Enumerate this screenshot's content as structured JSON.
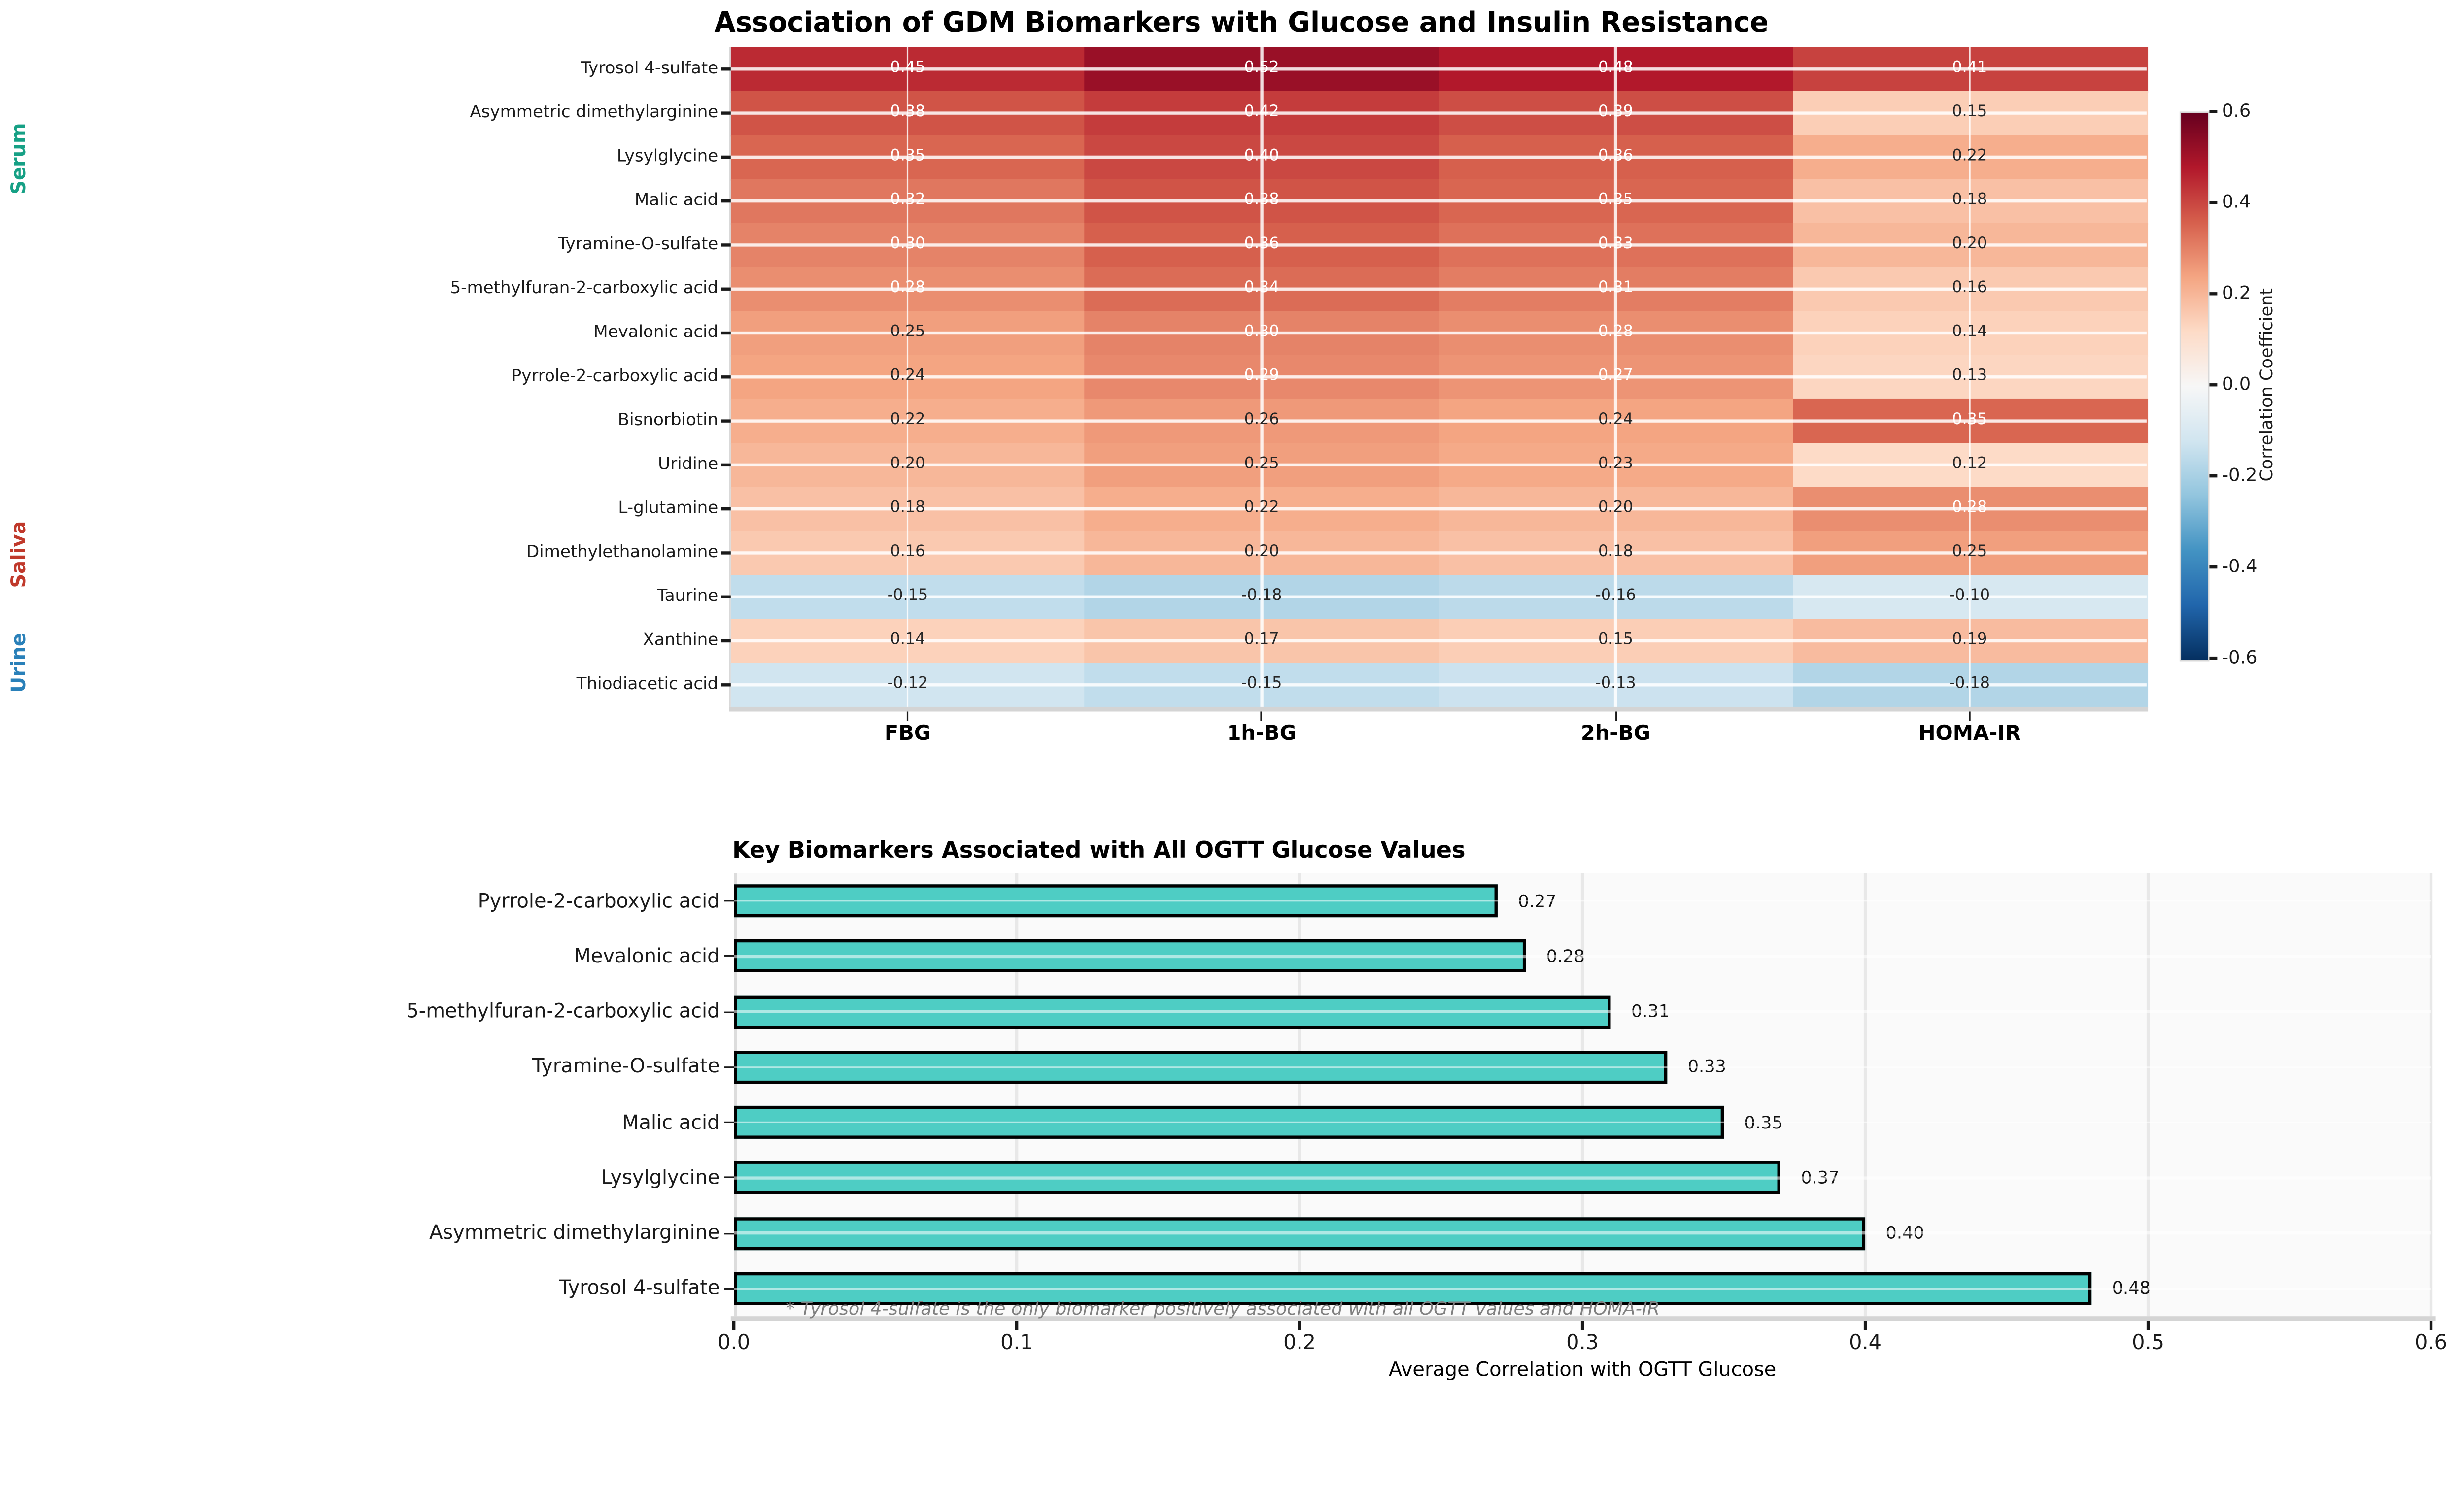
{
  "chart_data": [
    {
      "type": "heatmap",
      "title": "Association of GDM Biomarkers with Glucose and Insulin Resistance",
      "x_categories": [
        "FBG",
        "1h-BG",
        "2h-BG",
        "HOMA-IR"
      ],
      "y_categories": [
        "Tyrosol 4-sulfate",
        "Asymmetric dimethylarginine",
        "Lysylglycine",
        "Malic acid",
        "Tyramine-O-sulfate",
        "5-methylfuran-2-carboxylic acid",
        "Mevalonic acid",
        "Pyrrole-2-carboxylic acid",
        "Bisnorbiotin",
        "Uridine",
        "L-glutamine",
        "Dimethylethanolamine",
        "Taurine",
        "Xanthine",
        "Thiodiacetic acid"
      ],
      "values": [
        [
          0.45,
          0.52,
          0.48,
          0.41
        ],
        [
          0.38,
          0.42,
          0.39,
          0.15
        ],
        [
          0.35,
          0.4,
          0.36,
          0.22
        ],
        [
          0.32,
          0.38,
          0.35,
          0.18
        ],
        [
          0.3,
          0.36,
          0.33,
          0.2
        ],
        [
          0.28,
          0.34,
          0.31,
          0.16
        ],
        [
          0.25,
          0.3,
          0.28,
          0.14
        ],
        [
          0.24,
          0.29,
          0.27,
          0.13
        ],
        [
          0.22,
          0.26,
          0.24,
          0.35
        ],
        [
          0.2,
          0.25,
          0.23,
          0.12
        ],
        [
          0.18,
          0.22,
          0.2,
          0.28
        ],
        [
          0.16,
          0.2,
          0.18,
          0.25
        ],
        [
          -0.15,
          -0.18,
          -0.16,
          -0.1
        ],
        [
          0.14,
          0.17,
          0.15,
          0.19
        ],
        [
          -0.12,
          -0.15,
          -0.13,
          -0.18
        ]
      ],
      "colormap": "RdBu_r",
      "vmin": -0.6,
      "vmax": 0.6,
      "colorbar_label": "Correlation Coefficient",
      "colorbar_ticks": [
        "0.6",
        "0.4",
        "0.2",
        "0.0",
        "-0.2",
        "-0.4",
        "-0.6"
      ],
      "row_group_labels": [
        {
          "text": "Serum",
          "color": "#16A085"
        },
        {
          "text": "Saliva",
          "color": "#C0392B"
        },
        {
          "text": "Urine",
          "color": "#2980B9"
        }
      ],
      "grid": true,
      "annotation_dark_color": "#262626",
      "annotation_light_color": "#ffffff"
    },
    {
      "type": "bar",
      "orientation": "horizontal",
      "title": "Key Biomarkers Associated with All OGTT Glucose Values",
      "categories": [
        "Pyrrole-2-carboxylic acid",
        "Mevalonic acid",
        "5-methylfuran-2-carboxylic acid",
        "Tyramine-O-sulfate",
        "Malic acid",
        "Lysylglycine",
        "Asymmetric dimethylarginine",
        "Tyrosol 4-sulfate"
      ],
      "values": [
        0.27,
        0.28,
        0.31,
        0.33,
        0.35,
        0.37,
        0.4,
        0.48
      ],
      "xlabel": "Average Correlation with OGTT Glucose",
      "xlim": [
        0.0,
        0.6
      ],
      "xticks": [
        "0.0",
        "0.1",
        "0.2",
        "0.3",
        "0.4",
        "0.5",
        "0.6"
      ],
      "bar_color": "#4ECDC4",
      "bar_edge_color": "#000000",
      "footnote": "* Tyrosol 4-sulfate is the only biomarker positively associated with all OGTT values and HOMA-IR",
      "grid": true,
      "legend": "none"
    }
  ]
}
